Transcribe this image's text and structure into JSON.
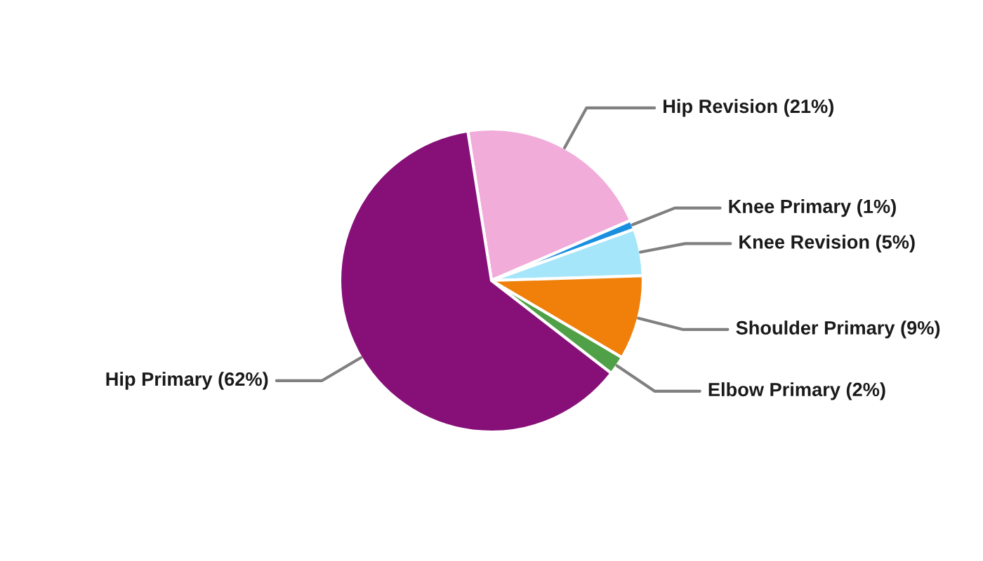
{
  "chart_data": {
    "type": "pie",
    "categories": [
      "Hip Revision",
      "Knee Primary",
      "Knee Revision",
      "Shoulder Primary",
      "Elbow Primary",
      "Hip Primary"
    ],
    "values": [
      21,
      1,
      5,
      9,
      2,
      62
    ],
    "colors": [
      "#f1acda",
      "#1a8fe0",
      "#a6e6fa",
      "#f0800a",
      "#4fa046",
      "#861078"
    ],
    "value_labels": [
      "(21%)",
      "(1%)",
      "(5%)",
      "(9%)",
      "(2%)",
      "(62%)"
    ]
  }
}
